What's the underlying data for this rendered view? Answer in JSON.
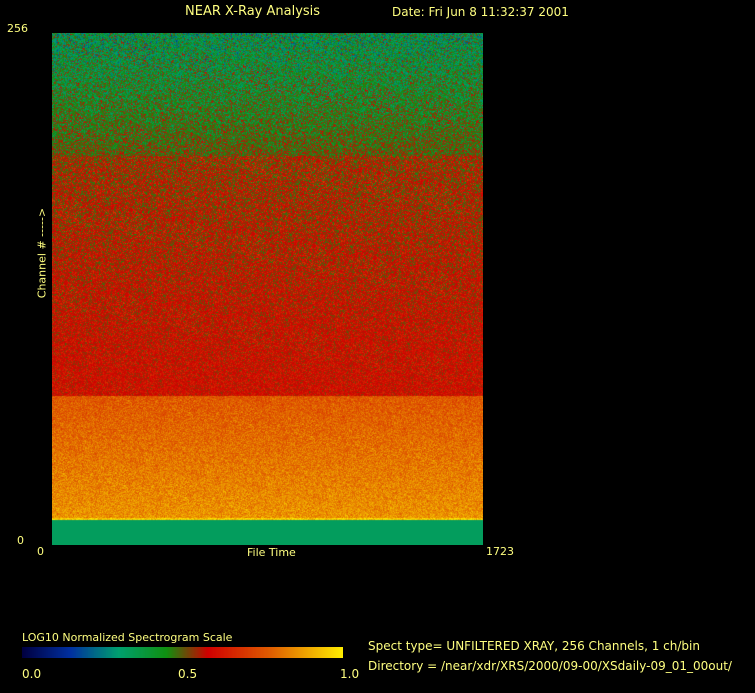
{
  "header": {
    "title": "NEAR X-Ray Analysis",
    "date": "Date: Fri Jun  8 11:32:37 2001"
  },
  "chart_data": {
    "type": "heatmap",
    "title": "NEAR X-Ray Analysis",
    "xlabel": "File Time",
    "ylabel": "Channel # ----->",
    "xlim": [
      0,
      1723
    ],
    "ylim": [
      0,
      256
    ],
    "x_tick_labels": [
      "0",
      "1723"
    ],
    "y_tick_labels": [
      "0",
      "256"
    ],
    "colorbar": {
      "label": "LOG10 Normalized Spectrogram Scale",
      "range": [
        0.0,
        1.0
      ],
      "tick_labels": [
        "0.0",
        "0.5",
        "1.0"
      ],
      "colors": [
        "#000040",
        "#0030a0",
        "#00a070",
        "#109010",
        "#d00000",
        "#e06000",
        "#ffee00"
      ]
    },
    "bands": [
      {
        "channels": [
          0,
          13
        ],
        "value": 0.33
      },
      {
        "channels": [
          13,
          14
        ],
        "value": 0.95
      },
      {
        "channels": [
          14,
          75
        ],
        "value": 0.78
      },
      {
        "channels": [
          75,
          195
        ],
        "value": 0.57
      },
      {
        "channels": [
          195,
          256
        ],
        "value": 0.38
      }
    ]
  },
  "footer": {
    "spect_type": "Spect type= UNFILTERED XRAY,  256 Channels,  1 ch/bin",
    "directory": "Directory = /near/xdr/XRS/2000/09-00/XSdaily-09_01_00out/"
  }
}
